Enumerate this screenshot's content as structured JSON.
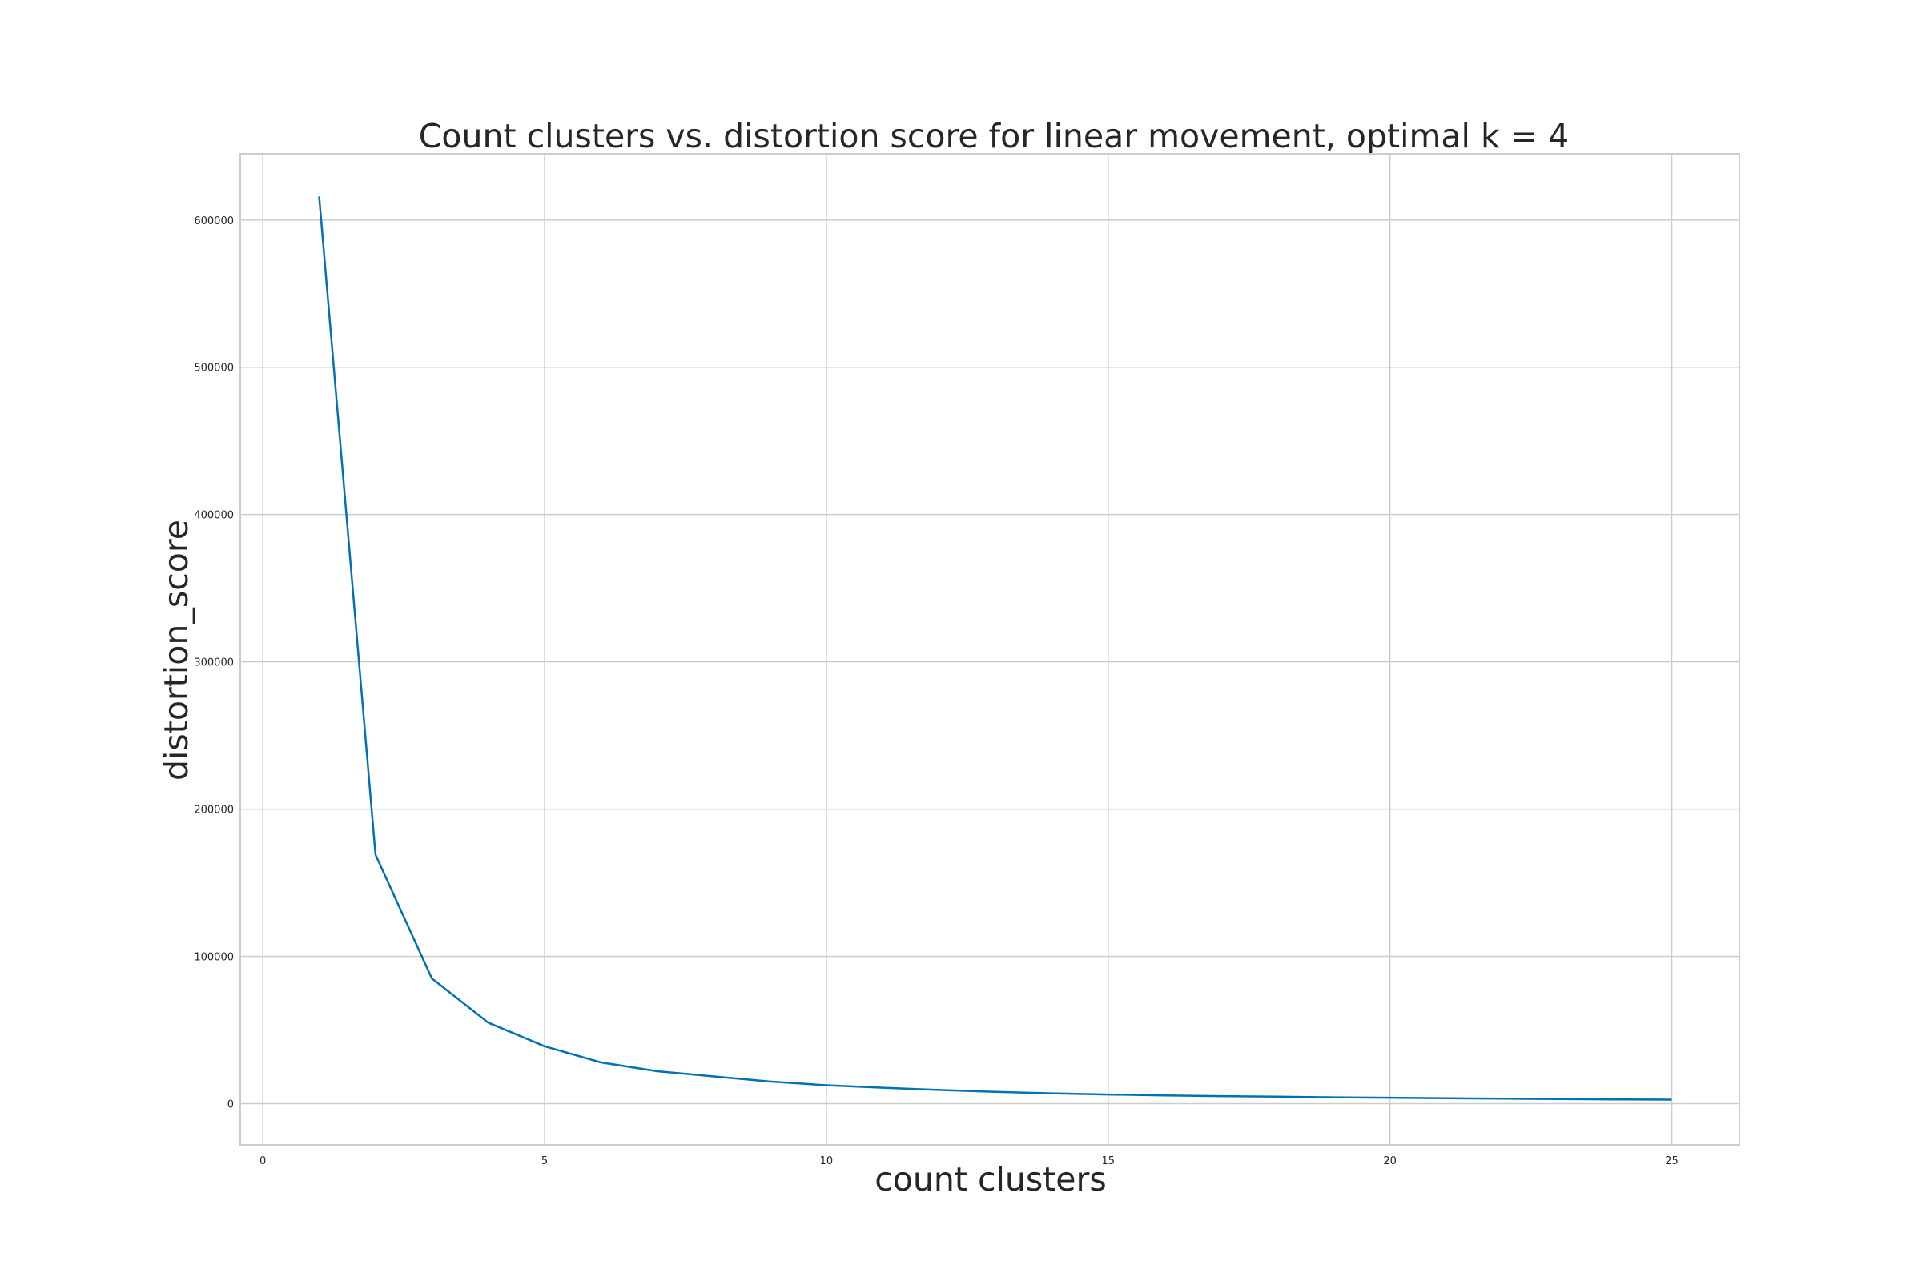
{
  "chart_data": {
    "type": "line",
    "title": "Count clusters vs. distortion score for linear movement, optimal k = 4",
    "xlabel": "count clusters",
    "ylabel": "distortion_score",
    "xlim": [
      -0.4,
      26.2
    ],
    "ylim": [
      -28000,
      645000
    ],
    "xticks": [
      0,
      5,
      10,
      15,
      20,
      25
    ],
    "yticks": [
      0,
      100000,
      200000,
      300000,
      400000,
      500000,
      600000
    ],
    "grid": true,
    "series": [
      {
        "color": "#0072b2",
        "x": [
          1,
          2,
          3,
          4,
          5,
          6,
          7,
          8,
          9,
          10,
          11,
          12,
          13,
          14,
          15,
          16,
          17,
          18,
          19,
          20,
          21,
          22,
          23,
          24,
          25
        ],
        "y": [
          616000,
          169000,
          85000,
          55000,
          39000,
          28000,
          22000,
          18500,
          15000,
          12500,
          10800,
          9300,
          8000,
          7000,
          6200,
          5600,
          5100,
          4700,
          4300,
          4000,
          3700,
          3400,
          3100,
          2900,
          2700
        ]
      }
    ]
  }
}
